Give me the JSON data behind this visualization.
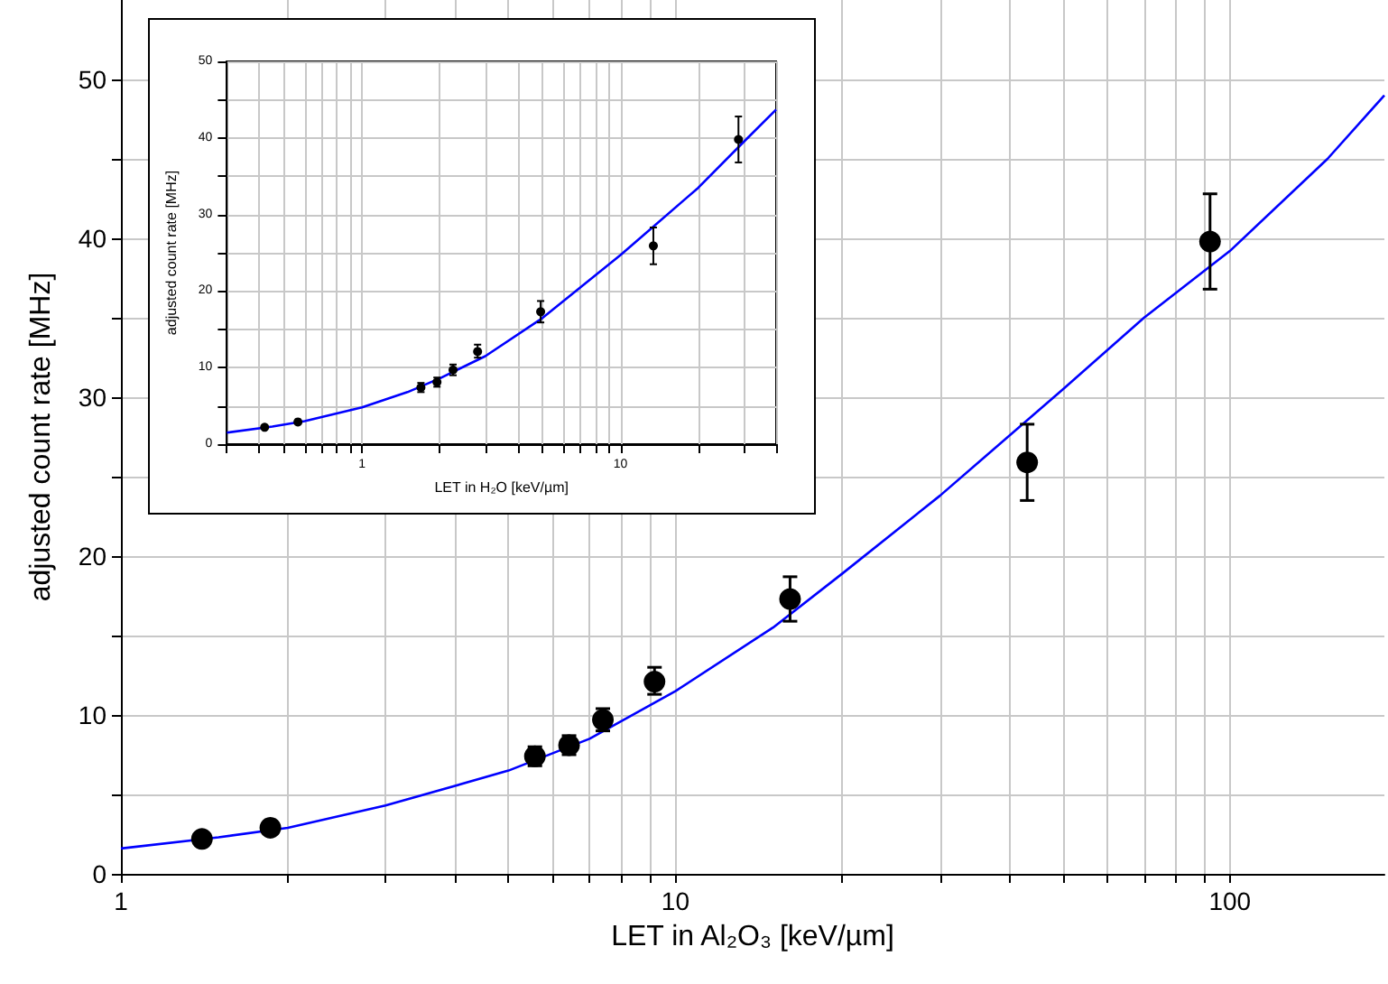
{
  "chart_data": [
    {
      "type": "scatter",
      "xlabel": "LET in Al₂O₃ [keV/µm]",
      "ylabel": "adjusted count rate [MHz]",
      "log": "x",
      "grid": true,
      "marker": "circle",
      "xlim": [
        1,
        190
      ],
      "ylim": [
        0,
        55
      ],
      "xticks": [
        1,
        {
          "value": 2,
          "label": null
        },
        {
          "value": 3,
          "label": null
        },
        {
          "value": 4,
          "label": null
        },
        {
          "value": 5,
          "label": null
        },
        {
          "value": 6,
          "label": null
        },
        {
          "value": 7,
          "label": null
        },
        {
          "value": 8,
          "label": null
        },
        {
          "value": 9,
          "label": null
        },
        10,
        {
          "value": 20,
          "label": null
        },
        {
          "value": 30,
          "label": null
        },
        {
          "value": 40,
          "label": null
        },
        {
          "value": 50,
          "label": null
        },
        {
          "value": 60,
          "label": null
        },
        {
          "value": 70,
          "label": null
        },
        {
          "value": 80,
          "label": null
        },
        {
          "value": 90,
          "label": null
        },
        100
      ],
      "yticks": [
        0,
        {
          "value": 5,
          "label": null
        },
        10,
        {
          "value": 15,
          "label": null
        },
        20,
        {
          "value": 25,
          "label": null
        },
        30,
        {
          "value": 35,
          "label": null
        },
        40,
        {
          "value": 45,
          "label": null
        },
        50
      ],
      "series": [
        {
          "color": "#000000",
          "x": [
            1.4,
            1.86,
            5.58,
            6.43,
            7.4,
            9.17,
            16.1,
            43.1,
            92.1
          ],
          "values": [
            2.2,
            2.9,
            7.4,
            8.1,
            9.7,
            12.1,
            17.3,
            25.9,
            39.8
          ],
          "errors": [
            null,
            null,
            [
              6.8,
              8.0
            ],
            [
              7.5,
              8.7
            ],
            [
              9.0,
              10.4
            ],
            [
              11.3,
              13.0
            ],
            [
              15.9,
              18.7
            ],
            [
              23.5,
              28.3
            ],
            [
              36.8,
              42.8
            ]
          ]
        },
        {
          "type": "line",
          "color": "#0000ff",
          "marker": "none",
          "x": [
            1,
            1.5,
            2,
            3,
            5,
            7,
            10,
            15,
            20,
            30,
            50,
            70,
            100,
            150,
            190
          ],
          "values": [
            1.6,
            2.3,
            2.9,
            4.3,
            6.5,
            8.5,
            11.5,
            15.5,
            18.9,
            23.8,
            30.5,
            35.0,
            39.2,
            45.0,
            49.0
          ]
        }
      ]
    },
    {
      "type": "scatter",
      "xlabel": "LET in H₂O [keV/µm]",
      "ylabel": "adjusted count rate [MHz]",
      "log": "x",
      "grid": true,
      "marker": "circle",
      "xlim": [
        0.3,
        40
      ],
      "ylim": [
        0,
        50
      ],
      "xticks": [
        {
          "value": 0.3,
          "label": null
        },
        {
          "value": 0.4,
          "label": null
        },
        {
          "value": 0.5,
          "label": null
        },
        {
          "value": 0.6,
          "label": null
        },
        {
          "value": 0.7,
          "label": null
        },
        {
          "value": 0.8,
          "label": null
        },
        {
          "value": 0.9,
          "label": null
        },
        1,
        {
          "value": 2,
          "label": null
        },
        {
          "value": 3,
          "label": null
        },
        {
          "value": 4,
          "label": null
        },
        {
          "value": 5,
          "label": null
        },
        {
          "value": 6,
          "label": null
        },
        {
          "value": 7,
          "label": null
        },
        {
          "value": 8,
          "label": null
        },
        {
          "value": 9,
          "label": null
        },
        10,
        {
          "value": 20,
          "label": null
        },
        {
          "value": 30,
          "label": null
        },
        {
          "value": 40,
          "label": null
        }
      ],
      "yticks": [
        0,
        {
          "value": 5,
          "label": null
        },
        10,
        {
          "value": 15,
          "label": null
        },
        20,
        {
          "value": 25,
          "label": null
        },
        30,
        {
          "value": 35,
          "label": null
        },
        40,
        {
          "value": 45,
          "label": null
        },
        50
      ],
      "series": [
        {
          "color": "#000000",
          "x": [
            0.42,
            0.565,
            1.69,
            1.95,
            2.25,
            2.8,
            4.91,
            13.4,
            28.6
          ],
          "values": [
            2.2,
            2.9,
            7.4,
            8.1,
            9.7,
            12.1,
            17.3,
            25.9,
            39.8
          ],
          "errors": [
            null,
            null,
            [
              6.8,
              8.0
            ],
            [
              7.5,
              8.7
            ],
            [
              9.0,
              10.4
            ],
            [
              11.3,
              13.0
            ],
            [
              15.9,
              18.7
            ],
            [
              23.5,
              28.3
            ],
            [
              36.8,
              42.8
            ]
          ]
        },
        {
          "type": "line",
          "color": "#0000ff",
          "marker": "none",
          "x": [
            0.3,
            0.45,
            0.6,
            1,
            1.5,
            2,
            3,
            5,
            10,
            20,
            30,
            40
          ],
          "values": [
            1.5,
            2.3,
            3.0,
            4.8,
            6.8,
            8.6,
            11.5,
            16.5,
            24.7,
            33.5,
            39.5,
            43.7
          ]
        }
      ]
    }
  ]
}
